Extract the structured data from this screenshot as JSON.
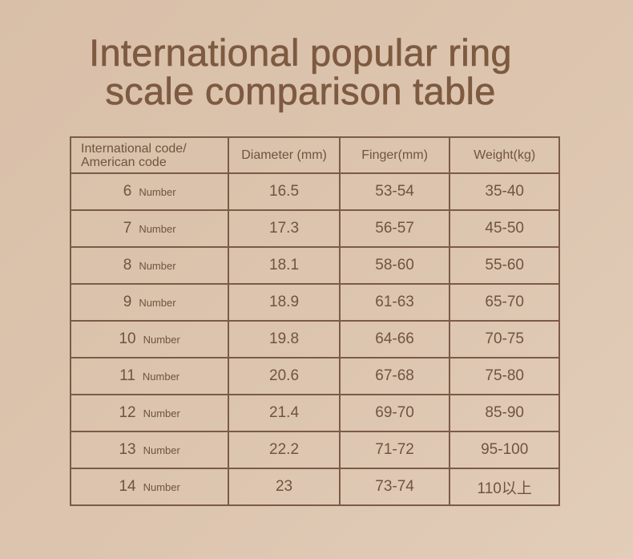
{
  "title": {
    "line1": "International popular ring",
    "line2": "scale comparison table"
  },
  "colors": {
    "text": "#6f5442",
    "border": "#7b5b47",
    "background": "#dcc4ae"
  },
  "table": {
    "headers": [
      "International code/\nAmerican code",
      "Diameter (mm)",
      "Finger(mm)",
      "Weight(kg)"
    ],
    "rows": [
      {
        "code": "6",
        "unit": "Number",
        "diameter": "16.5",
        "finger": "53-54",
        "weight": "35-40"
      },
      {
        "code": "7",
        "unit": "Number",
        "diameter": "17.3",
        "finger": "56-57",
        "weight": "45-50"
      },
      {
        "code": "8",
        "unit": "Number",
        "diameter": "18.1",
        "finger": "58-60",
        "weight": "55-60"
      },
      {
        "code": "9",
        "unit": "Number",
        "diameter": "18.9",
        "finger": "61-63",
        "weight": "65-70"
      },
      {
        "code": "10",
        "unit": "Number",
        "diameter": "19.8",
        "finger": "64-66",
        "weight": "70-75"
      },
      {
        "code": "11",
        "unit": "Number",
        "diameter": "20.6",
        "finger": "67-68",
        "weight": "75-80"
      },
      {
        "code": "12",
        "unit": "Number",
        "diameter": "21.4",
        "finger": "69-70",
        "weight": "85-90"
      },
      {
        "code": "13",
        "unit": "Number",
        "diameter": "22.2",
        "finger": "71-72",
        "weight": "95-100"
      },
      {
        "code": "14",
        "unit": "Number",
        "diameter": "23",
        "finger": "73-74",
        "weight": "110以上"
      }
    ]
  }
}
